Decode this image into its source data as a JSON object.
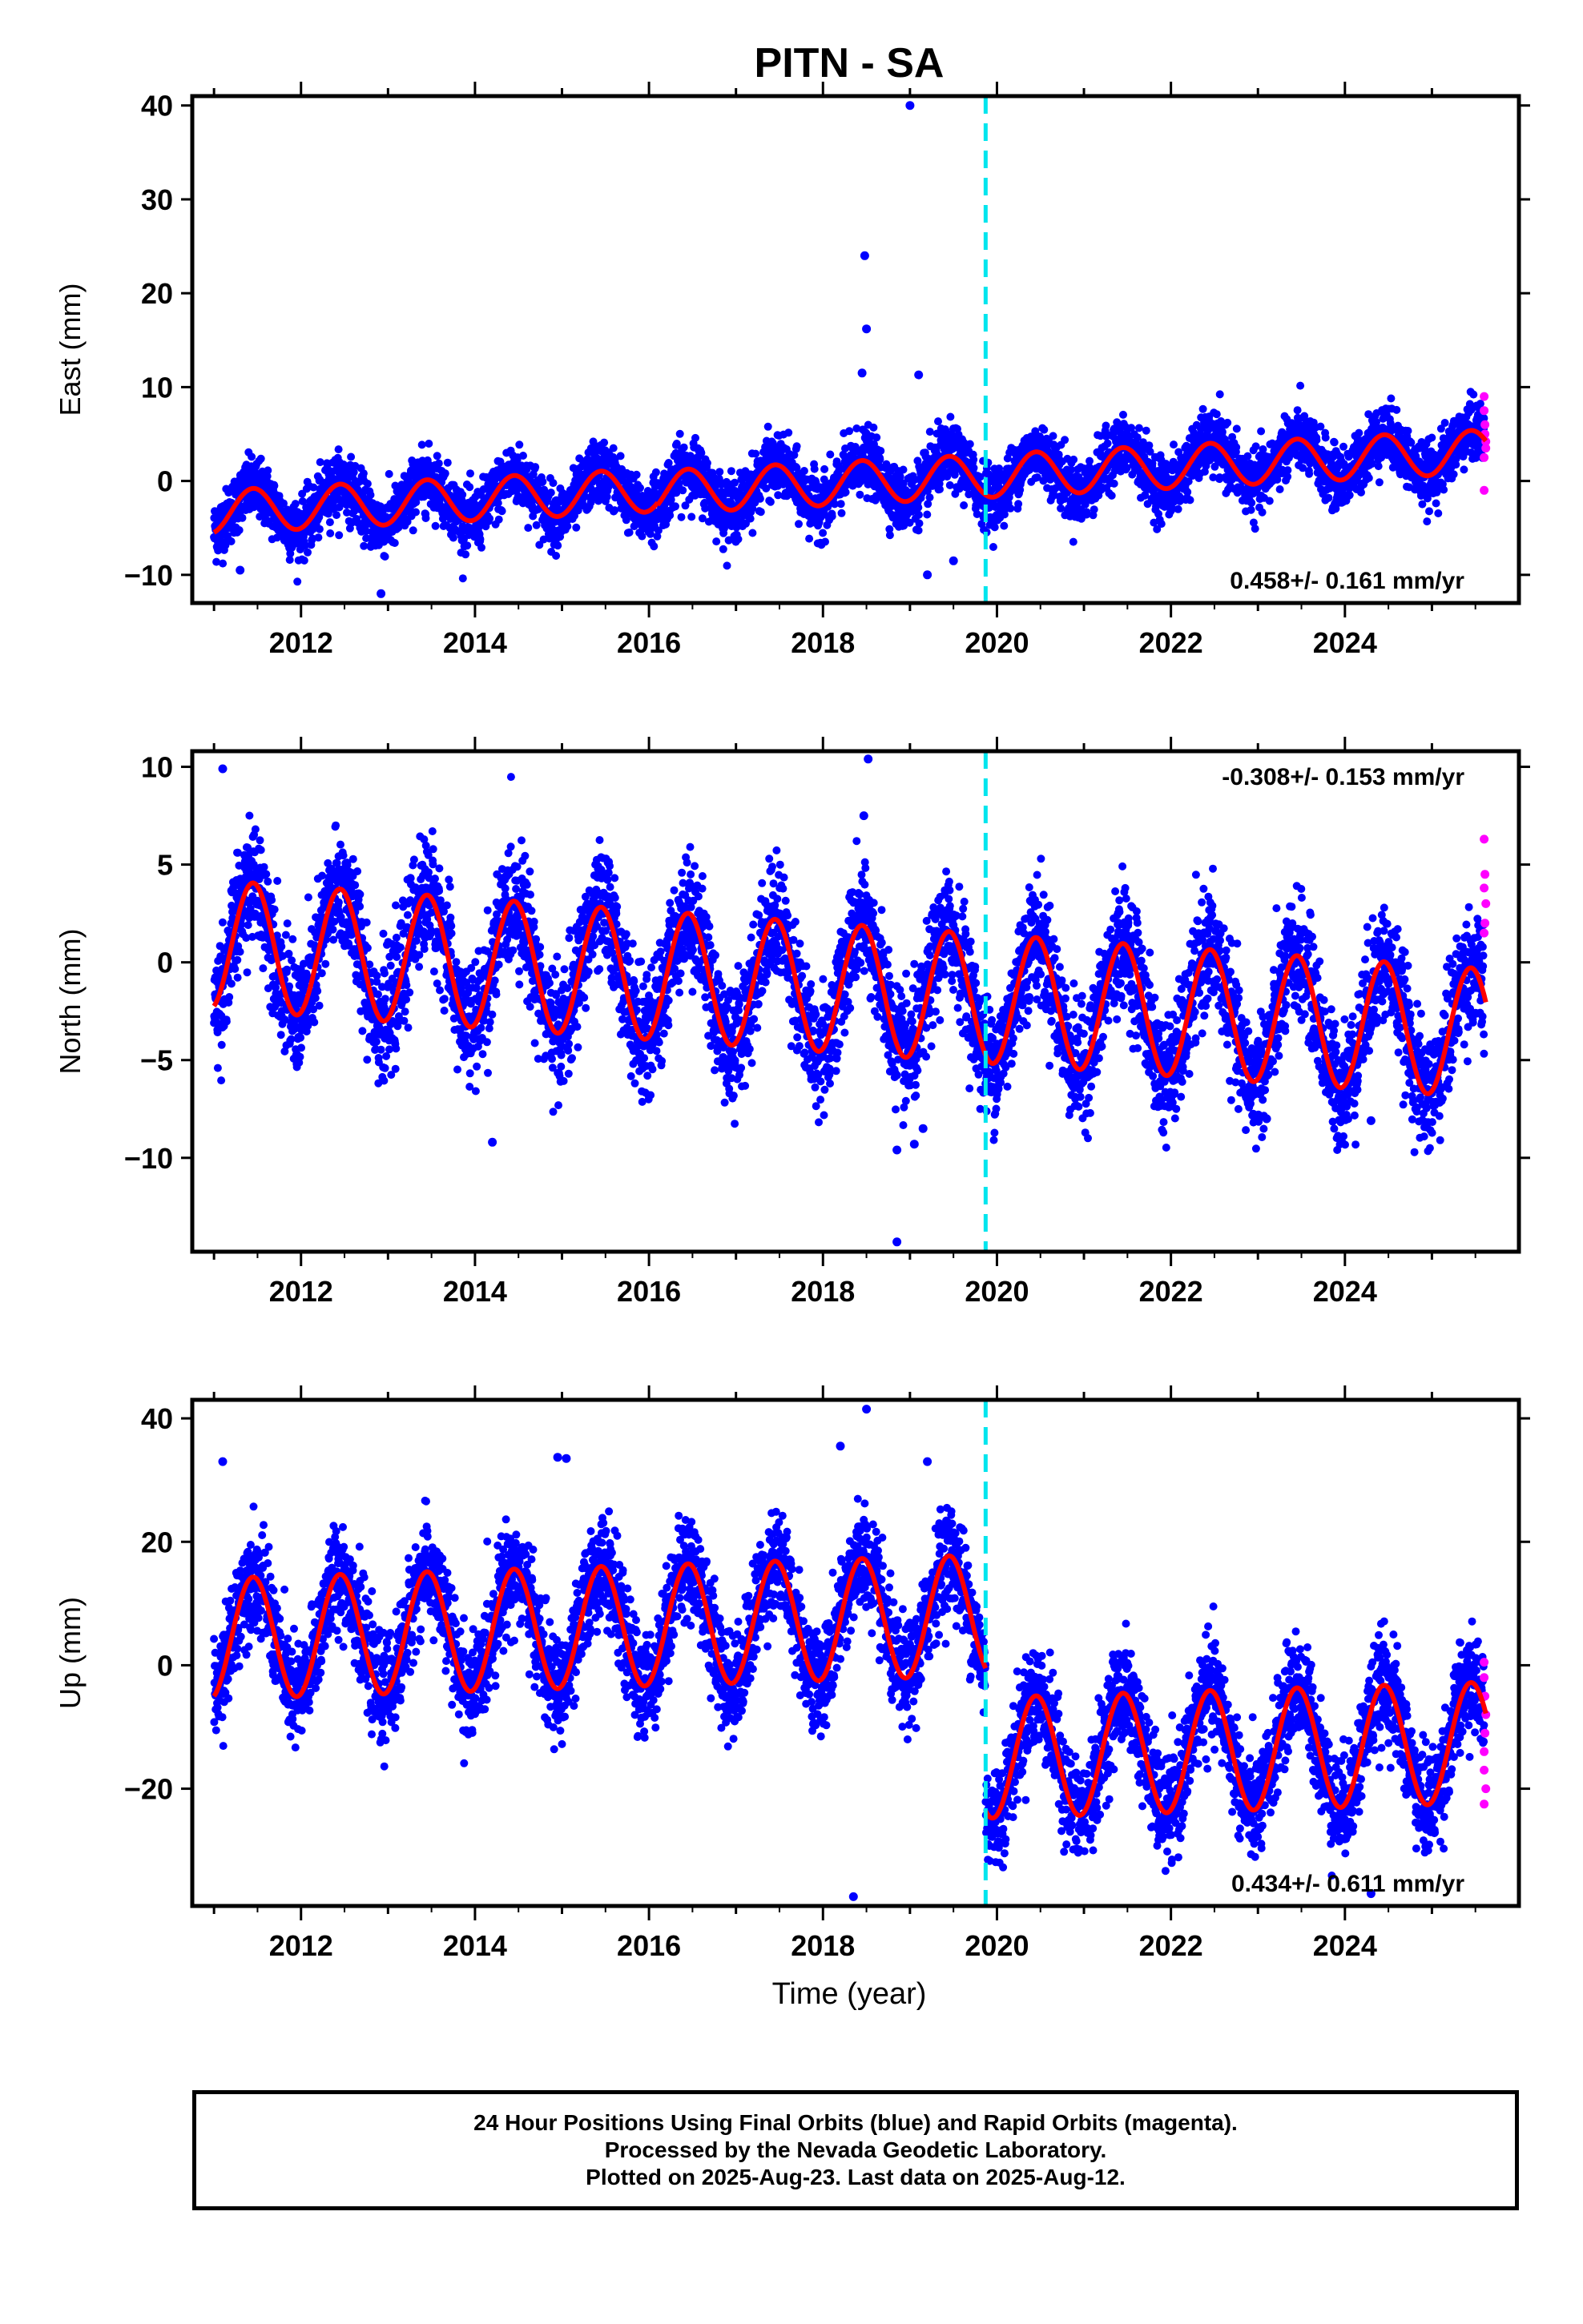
{
  "title": "PITN - SA",
  "xlabel": "Time (year)",
  "colors": {
    "final": "#0000ff",
    "rapid": "#ff00ff",
    "model": "#ff0000",
    "break": "#00e5ee"
  },
  "chart_data": [
    {
      "type": "scatter",
      "name": "east",
      "ylabel": "East (mm)",
      "ylim": [
        -13,
        41
      ],
      "xlim": [
        2010.75,
        2026.0
      ],
      "yticks": [
        -10,
        0,
        10,
        20,
        30,
        40
      ],
      "xticks": [
        2012,
        2014,
        2016,
        2018,
        2020,
        2022,
        2024
      ],
      "rate_text": "0.458+/- 0.161 mm/yr",
      "break_epoch": 2019.87,
      "model": {
        "amplitude_mm": 2.3,
        "segments": [
          {
            "start": 2011.0,
            "end": 2016.1,
            "offset_at_start": -3.3,
            "rate": 0.46
          },
          {
            "start": 2016.1,
            "end": 2023.1,
            "offset_at_start": -1.2,
            "rate": 0.46
          },
          {
            "start": 2023.1,
            "end": 2025.62,
            "offset_at_start": 2.0,
            "rate": 0.46
          }
        ]
      },
      "scatter_sd_mm": 1.6,
      "outliers": [
        [
          2019.0,
          40.0
        ],
        [
          2018.48,
          24.0
        ],
        [
          2018.5,
          16.2
        ],
        [
          2018.45,
          11.5
        ],
        [
          2019.1,
          11.3
        ],
        [
          2012.92,
          -12.0
        ],
        [
          2011.3,
          -9.5
        ],
        [
          2019.2,
          -10.0
        ],
        [
          2019.5,
          -8.5
        ]
      ],
      "rapid_points": [
        [
          2025.6,
          9.0
        ],
        [
          2025.6,
          7.5
        ],
        [
          2025.61,
          6.0
        ],
        [
          2025.61,
          5.0
        ],
        [
          2025.62,
          4.2
        ],
        [
          2025.62,
          3.5
        ],
        [
          2025.6,
          2.5
        ],
        [
          2025.6,
          -1.0
        ]
      ]
    },
    {
      "type": "scatter",
      "name": "north",
      "ylabel": "North (mm)",
      "ylim": [
        -14.8,
        10.8
      ],
      "xlim": [
        2010.75,
        2026.0
      ],
      "yticks": [
        -10,
        -5,
        0,
        5,
        10
      ],
      "xticks": [
        2012,
        2014,
        2016,
        2018,
        2020,
        2022,
        2024
      ],
      "rate_text": "-0.308+/- 0.153 mm/yr",
      "break_epoch": 2019.87,
      "model": {
        "amplitude_mm": 3.3,
        "segments": [
          {
            "start": 2011.0,
            "end": 2025.62,
            "offset_at_start": 0.9,
            "rate": -0.31
          }
        ]
      },
      "scatter_sd_mm": 1.5,
      "outliers": [
        [
          2011.1,
          9.9
        ],
        [
          2018.52,
          10.4
        ],
        [
          2018.47,
          7.5
        ],
        [
          2018.85,
          -14.3
        ],
        [
          2018.85,
          -9.6
        ],
        [
          2019.05,
          -9.3
        ],
        [
          2019.15,
          -8.5
        ],
        [
          2014.2,
          -9.2
        ],
        [
          2022.0,
          -7.0
        ],
        [
          2023.1,
          -8.0
        ],
        [
          2024.3,
          -8.1
        ]
      ],
      "rapid_points": [
        [
          2025.6,
          6.3
        ],
        [
          2025.61,
          4.5
        ],
        [
          2025.6,
          3.8
        ],
        [
          2025.62,
          3.0
        ],
        [
          2025.61,
          2.0
        ],
        [
          2025.6,
          1.5
        ]
      ]
    },
    {
      "type": "scatter",
      "name": "up",
      "ylabel": "Up (mm)",
      "ylim": [
        -39,
        43
      ],
      "xlim": [
        2010.75,
        2026.0
      ],
      "yticks": [
        -20,
        0,
        20,
        40
      ],
      "xticks": [
        2012,
        2014,
        2016,
        2018,
        2020,
        2022,
        2024
      ],
      "rate_text": "0.434+/- 0.611 mm/yr",
      "break_epoch": 2019.87,
      "model": {
        "amplitude_mm": 9.8,
        "segments": [
          {
            "start": 2011.0,
            "end": 2019.87,
            "offset_at_start": 4.3,
            "rate": 0.43
          },
          {
            "start": 2019.87,
            "end": 2025.62,
            "offset_at_start": -15.0,
            "rate": 0.43
          }
        ]
      },
      "scatter_sd_mm": 4.2,
      "outliers": [
        [
          2011.1,
          33.0
        ],
        [
          2018.5,
          41.5
        ],
        [
          2014.95,
          33.7
        ],
        [
          2015.05,
          33.5
        ],
        [
          2019.2,
          33.0
        ],
        [
          2018.35,
          -37.5
        ],
        [
          2018.2,
          35.5
        ],
        [
          2024.3,
          -37.0
        ]
      ],
      "rapid_points": [
        [
          2025.6,
          0.5
        ],
        [
          2025.6,
          -2.0
        ],
        [
          2025.61,
          -5.0
        ],
        [
          2025.62,
          -8.0
        ],
        [
          2025.61,
          -11.0
        ],
        [
          2025.6,
          -14.0
        ],
        [
          2025.6,
          -17.0
        ],
        [
          2025.62,
          -20.0
        ],
        [
          2025.6,
          -22.5
        ]
      ]
    }
  ],
  "footer": {
    "line1": "24 Hour Positions Using Final Orbits (blue) and Rapid Orbits (magenta).",
    "line2": "Processed by the Nevada Geodetic Laboratory.",
    "line3": "Plotted on 2025-Aug-23. Last data on 2025-Aug-12."
  }
}
